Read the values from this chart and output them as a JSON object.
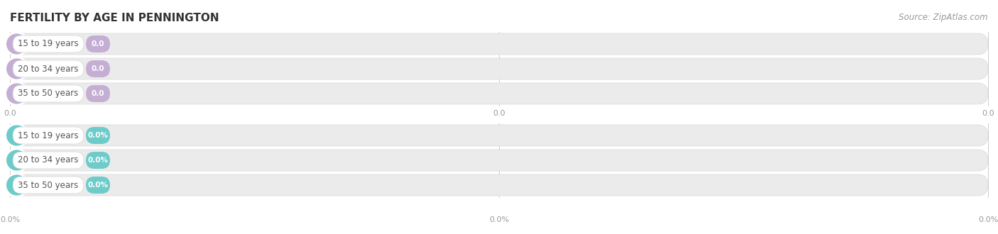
{
  "title": "FERTILITY BY AGE IN PENNINGTON",
  "source": "Source: ZipAtlas.com",
  "top_labels": [
    "15 to 19 years",
    "20 to 34 years",
    "35 to 50 years"
  ],
  "bottom_labels": [
    "15 to 19 years",
    "20 to 34 years",
    "35 to 50 years"
  ],
  "top_value_labels": [
    "0.0",
    "0.0",
    "0.0"
  ],
  "bottom_value_labels": [
    "0.0%",
    "0.0%",
    "0.0%"
  ],
  "top_tick_labels": [
    "0.0",
    "0.0",
    "0.0"
  ],
  "bottom_tick_labels": [
    "0.0%",
    "0.0%",
    "0.0%"
  ],
  "top_circle_color": "#c5aed4",
  "top_badge_color": "#c5aed4",
  "bottom_circle_color": "#6dcbca",
  "bottom_badge_color": "#6dcbca",
  "bar_bg_color": "#ebebeb",
  "fig_bg_color": "#ffffff",
  "title_color": "#333333",
  "tick_color": "#999999",
  "source_color": "#999999",
  "title_fontsize": 11,
  "label_fontsize": 8.5,
  "value_fontsize": 7.5,
  "tick_fontsize": 8,
  "source_fontsize": 8.5
}
